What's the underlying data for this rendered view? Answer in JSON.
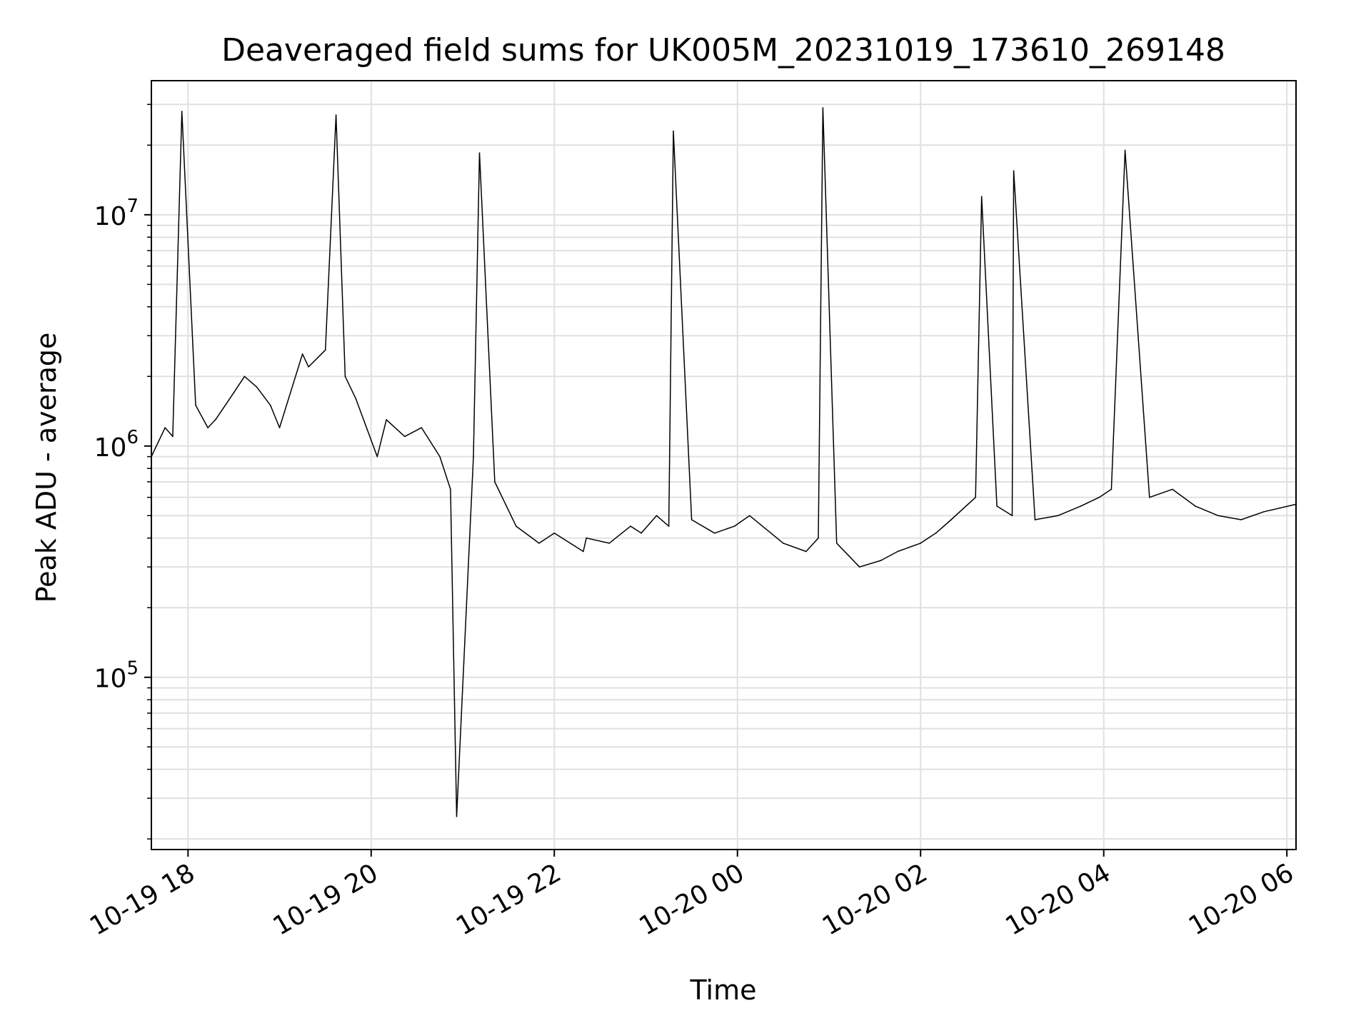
{
  "chart_data": {
    "type": "line",
    "title": "Deaveraged field sums for UK005M_20231019_173610_269148",
    "xlabel": "Time",
    "ylabel": "Peak ADU - average",
    "x_scale": "time",
    "y_scale": "log",
    "xlim": [
      "2023-10-19 17:36",
      "2023-10-20 06:06"
    ],
    "ylim": [
      18000,
      38000000
    ],
    "x_ticks": [
      {
        "time": "2023-10-19 18:00",
        "label": "10-19 18"
      },
      {
        "time": "2023-10-19 20:00",
        "label": "10-19 20"
      },
      {
        "time": "2023-10-19 22:00",
        "label": "10-19 22"
      },
      {
        "time": "2023-10-20 00:00",
        "label": "10-20 00"
      },
      {
        "time": "2023-10-20 02:00",
        "label": "10-20 02"
      },
      {
        "time": "2023-10-20 04:00",
        "label": "10-20 04"
      },
      {
        "time": "2023-10-20 06:00",
        "label": "10-20 06"
      }
    ],
    "y_ticks": [
      {
        "value": 100000,
        "base": "10",
        "exp": "5"
      },
      {
        "value": 1000000,
        "base": "10",
        "exp": "6"
      },
      {
        "value": 10000000,
        "base": "10",
        "exp": "7"
      }
    ],
    "grid": true,
    "line_color": "#000000",
    "grid_color": "#e0e0e0",
    "series": [
      {
        "x": [
          "2023-10-19 17:36",
          "2023-10-19 17:45",
          "2023-10-19 17:50",
          "2023-10-19 17:56",
          "2023-10-19 18:05",
          "2023-10-19 18:13",
          "2023-10-19 18:18",
          "2023-10-19 18:30",
          "2023-10-19 18:37",
          "2023-10-19 18:45",
          "2023-10-19 18:54",
          "2023-10-19 19:00",
          "2023-10-19 19:15",
          "2023-10-19 19:19",
          "2023-10-19 19:30",
          "2023-10-19 19:37",
          "2023-10-19 19:43",
          "2023-10-19 19:50",
          "2023-10-19 20:04",
          "2023-10-19 20:10",
          "2023-10-19 20:22",
          "2023-10-19 20:33",
          "2023-10-19 20:45",
          "2023-10-19 20:52",
          "2023-10-19 20:56",
          "2023-10-19 21:07",
          "2023-10-19 21:11",
          "2023-10-19 21:21",
          "2023-10-19 21:35",
          "2023-10-19 21:50",
          "2023-10-19 22:00",
          "2023-10-19 22:19",
          "2023-10-19 22:21",
          "2023-10-19 22:36",
          "2023-10-19 22:50",
          "2023-10-19 22:57",
          "2023-10-19 23:07",
          "2023-10-19 23:15",
          "2023-10-19 23:18",
          "2023-10-19 23:30",
          "2023-10-19 23:45",
          "2023-10-19 23:58",
          "2023-10-20 00:08",
          "2023-10-20 00:30",
          "2023-10-20 00:45",
          "2023-10-20 00:53",
          "2023-10-20 00:56",
          "2023-10-20 01:05",
          "2023-10-20 01:20",
          "2023-10-20 01:34",
          "2023-10-20 01:45",
          "2023-10-20 02:00",
          "2023-10-20 02:10",
          "2023-10-20 02:20",
          "2023-10-20 02:36",
          "2023-10-20 02:40",
          "2023-10-20 02:50",
          "2023-10-20 03:00",
          "2023-10-20 03:01",
          "2023-10-20 03:15",
          "2023-10-20 03:30",
          "2023-10-20 03:45",
          "2023-10-20 03:57",
          "2023-10-20 04:05",
          "2023-10-20 04:14",
          "2023-10-20 04:30",
          "2023-10-20 04:45",
          "2023-10-20 05:00",
          "2023-10-20 05:15",
          "2023-10-20 05:30",
          "2023-10-20 05:45",
          "2023-10-20 06:06"
        ],
        "y": [
          900000,
          1200000,
          1100000,
          28000000,
          1500000,
          1200000,
          1300000,
          1700000,
          2000000,
          1800000,
          1500000,
          1200000,
          2500000,
          2200000,
          2600000,
          27000000,
          2000000,
          1600000,
          900000,
          1300000,
          1100000,
          1200000,
          900000,
          650000,
          25000,
          900000,
          18500000,
          700000,
          450000,
          380000,
          420000,
          350000,
          400000,
          380000,
          450000,
          420000,
          500000,
          450000,
          23000000,
          480000,
          420000,
          450000,
          500000,
          380000,
          350000,
          400000,
          29000000,
          380000,
          300000,
          320000,
          350000,
          380000,
          420000,
          480000,
          600000,
          12000000,
          550000,
          500000,
          15500000,
          480000,
          500000,
          550000,
          600000,
          650000,
          19000000,
          600000,
          650000,
          550000,
          500000,
          480000,
          520000,
          560000
        ]
      }
    ]
  }
}
